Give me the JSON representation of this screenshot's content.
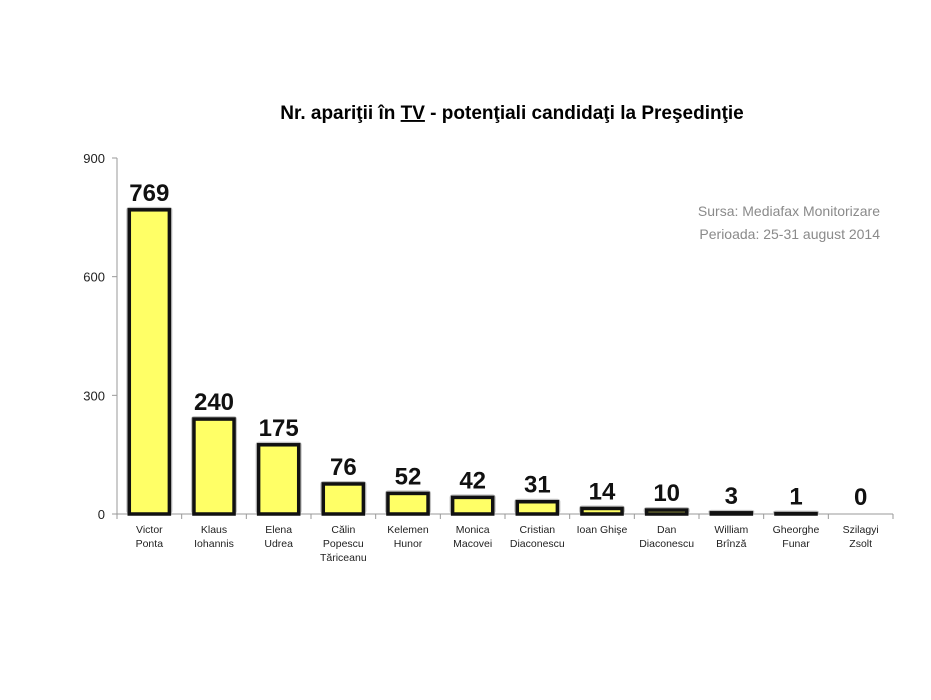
{
  "chart_data": {
    "type": "bar",
    "title": {
      "prefix": "Nr. apariţii în ",
      "underlined": "TV",
      "suffix": " - potenţiali candidaţi la Preşedinţie"
    },
    "source_lines": [
      "Sursa: Mediafax Monitorizare",
      "Perioada: 25-31 august 2014"
    ],
    "categories": [
      [
        "Victor",
        "Ponta"
      ],
      [
        "Klaus",
        "Iohannis"
      ],
      [
        "Elena",
        "Udrea"
      ],
      [
        "Călin",
        "Popescu",
        "Tăriceanu"
      ],
      [
        "Kelemen",
        "Hunor"
      ],
      [
        "Monica",
        "Macovei"
      ],
      [
        "Cristian",
        "Diaconescu"
      ],
      [
        "Ioan Ghişe"
      ],
      [
        "Dan",
        "Diaconescu"
      ],
      [
        "William",
        "Brînză"
      ],
      [
        "Gheorghe",
        "Funar"
      ],
      [
        "Szilagyi",
        "Zsolt"
      ]
    ],
    "values": [
      769,
      240,
      175,
      76,
      52,
      42,
      31,
      14,
      10,
      3,
      1,
      0
    ],
    "ylim": [
      0,
      900
    ],
    "yticks": [
      0,
      300,
      600,
      900
    ],
    "xlabel": "",
    "ylabel": "",
    "bar_color": "#ffff66",
    "bar_border": "#111111",
    "grid": false,
    "legend": "none"
  }
}
